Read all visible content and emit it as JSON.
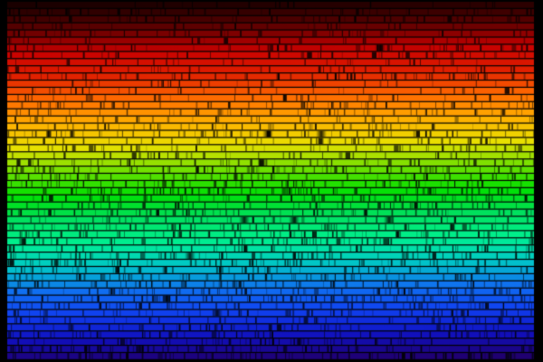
{
  "image": {
    "subject": "solar-spectrum",
    "background": "#000000",
    "color_stops": [
      "#1a0000",
      "#5a0000",
      "#c80000",
      "#e02000",
      "#ff6a00",
      "#ffb000",
      "#e8e000",
      "#70e000",
      "#00e000",
      "#00e060",
      "#00f090",
      "#00c8c8",
      "#1070f0",
      "#1040f0",
      "#1010c0",
      "#200070"
    ]
  }
}
